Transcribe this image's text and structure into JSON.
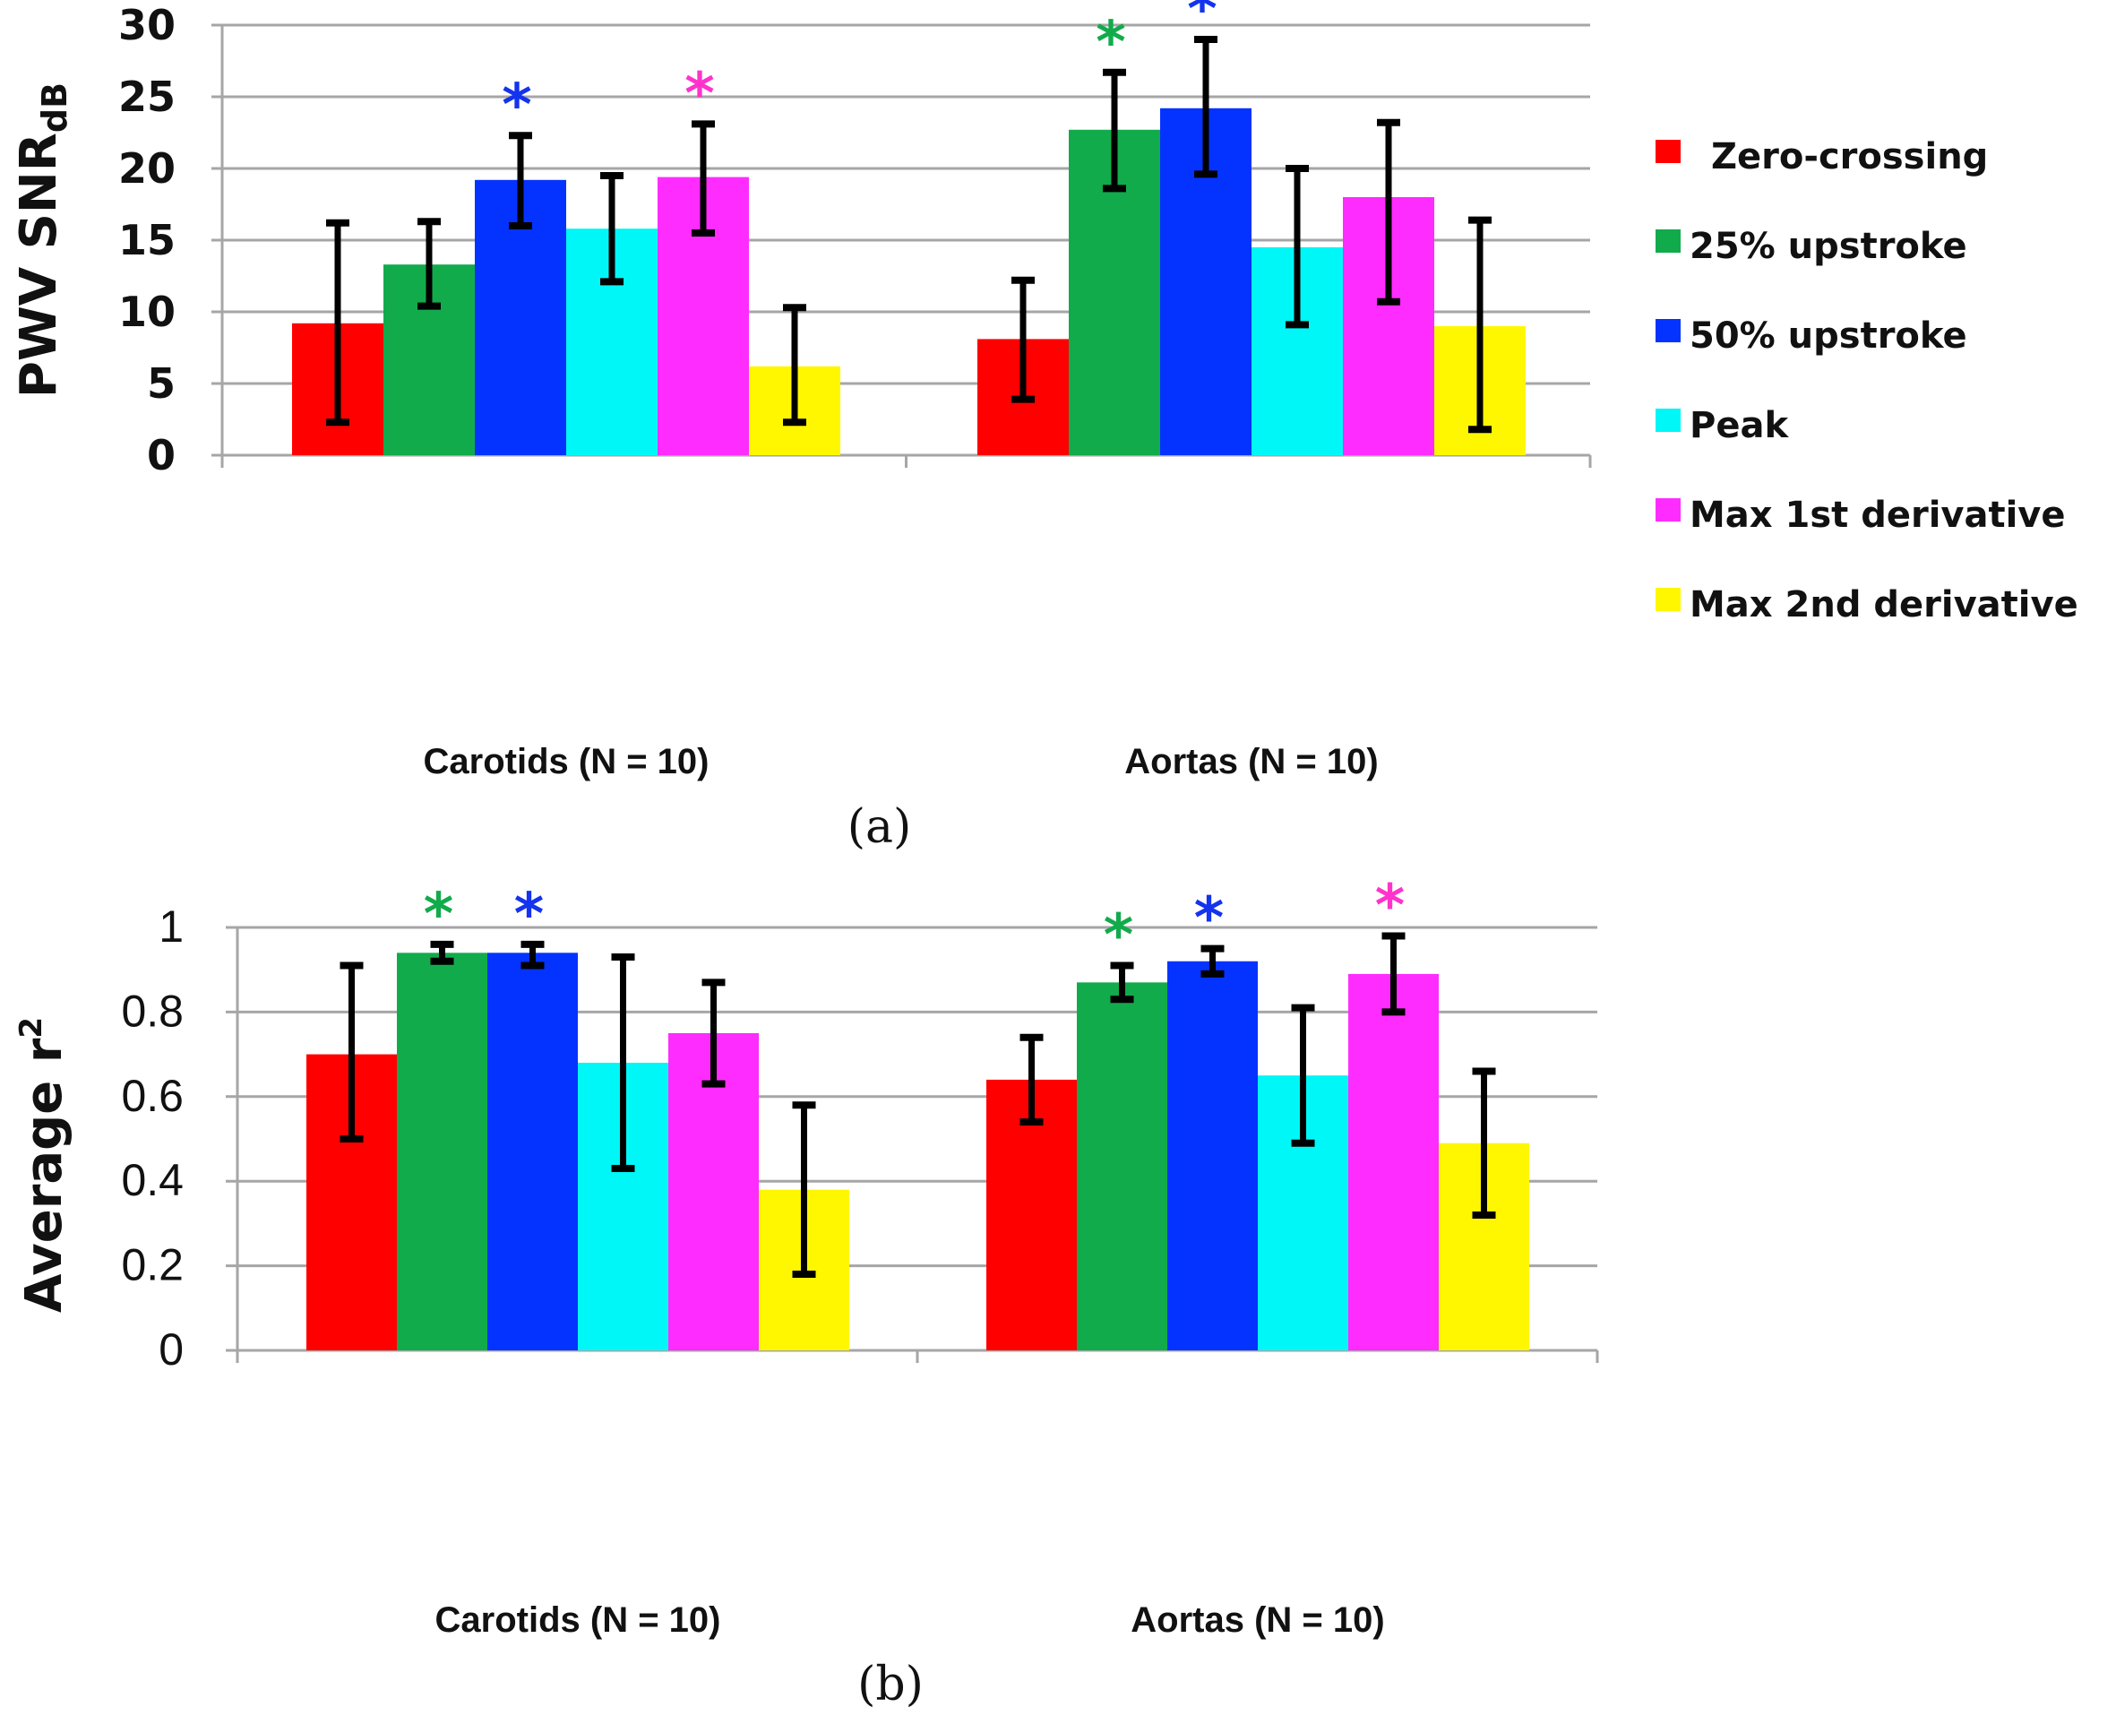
{
  "legend": [
    {
      "label": "Zero-crossing",
      "color": "#ff0000"
    },
    {
      "label": "25% upstroke",
      "color": "#12ab4c"
    },
    {
      "label": "50% upstroke",
      "color": "#0433ff"
    },
    {
      "label": "Peak",
      "color": "#00f7f7"
    },
    {
      "label": "Max 1st derivative",
      "color": "#ff2cff"
    },
    {
      "label": "Max 2nd derivative",
      "color": "#fff700"
    }
  ],
  "chart_data": [
    {
      "type": "bar",
      "panel": "(a)",
      "title": "",
      "xlabel": "",
      "ylabel": "PWV SNR",
      "ylabel_subscript": "dB",
      "ylim": [
        0,
        30
      ],
      "yticks": [
        0,
        5,
        10,
        15,
        20,
        25,
        30
      ],
      "grid": true,
      "legend_position": "right",
      "categories": [
        "Carotids (N = 10)",
        "Aortas (N = 10)"
      ],
      "series": [
        {
          "name": "Zero-crossing",
          "values": [
            9.2,
            8.1
          ],
          "err_high": [
            16.2,
            12.2
          ],
          "err_low": [
            2.3,
            3.9
          ],
          "significant": [
            false,
            false
          ]
        },
        {
          "name": "25% upstroke",
          "values": [
            13.3,
            22.7
          ],
          "err_high": [
            16.3,
            26.7
          ],
          "err_low": [
            10.4,
            18.6
          ],
          "significant": [
            false,
            true
          ]
        },
        {
          "name": "50% upstroke",
          "values": [
            19.2,
            24.2
          ],
          "err_high": [
            22.3,
            29.0
          ],
          "err_low": [
            16.0,
            19.6
          ],
          "significant": [
            true,
            true
          ]
        },
        {
          "name": "Peak",
          "values": [
            15.8,
            14.5
          ],
          "err_high": [
            19.5,
            20.0
          ],
          "err_low": [
            12.1,
            9.1
          ],
          "significant": [
            false,
            false
          ]
        },
        {
          "name": "Max 1st derivative",
          "values": [
            19.4,
            18.0
          ],
          "err_high": [
            23.1,
            23.2
          ],
          "err_low": [
            15.5,
            10.7
          ],
          "significant": [
            true,
            false
          ]
        },
        {
          "name": "Max 2nd derivative",
          "values": [
            6.2,
            9.0
          ],
          "err_high": [
            10.3,
            16.4
          ],
          "err_low": [
            2.3,
            1.8
          ],
          "significant": [
            false,
            false
          ]
        }
      ],
      "annotation": "*"
    },
    {
      "type": "bar",
      "panel": "(b)",
      "title": "",
      "xlabel": "",
      "ylabel": "Average r",
      "ylabel_superscript": "2",
      "ylim": [
        0,
        1
      ],
      "yticks": [
        0,
        0.2,
        0.4,
        0.6,
        0.8,
        1
      ],
      "ytick_labels": [
        "0",
        "0.2",
        "0.4",
        "0.6",
        "0.8",
        "1"
      ],
      "grid": true,
      "legend_position": "none",
      "categories": [
        "Carotids (N = 10)",
        "Aortas (N = 10)"
      ],
      "series": [
        {
          "name": "Zero-crossing",
          "values": [
            0.7,
            0.64
          ],
          "err_high": [
            0.91,
            0.74
          ],
          "err_low": [
            0.5,
            0.54
          ],
          "significant": [
            false,
            false
          ]
        },
        {
          "name": "25% upstroke",
          "values": [
            0.94,
            0.87
          ],
          "err_high": [
            0.96,
            0.91
          ],
          "err_low": [
            0.92,
            0.83
          ],
          "significant": [
            true,
            true
          ]
        },
        {
          "name": "50% upstroke",
          "values": [
            0.94,
            0.92
          ],
          "err_high": [
            0.96,
            0.95
          ],
          "err_low": [
            0.91,
            0.89
          ],
          "significant": [
            true,
            true
          ]
        },
        {
          "name": "Peak",
          "values": [
            0.68,
            0.65
          ],
          "err_high": [
            0.93,
            0.81
          ],
          "err_low": [
            0.43,
            0.49
          ],
          "significant": [
            false,
            false
          ]
        },
        {
          "name": "Max 1st derivative",
          "values": [
            0.75,
            0.89
          ],
          "err_high": [
            0.87,
            0.98
          ],
          "err_low": [
            0.63,
            0.8
          ],
          "significant": [
            false,
            true
          ]
        },
        {
          "name": "Max 2nd derivative",
          "values": [
            0.38,
            0.49
          ],
          "err_high": [
            0.58,
            0.66
          ],
          "err_low": [
            0.18,
            0.32
          ],
          "significant": [
            false,
            false
          ]
        }
      ],
      "annotation": "*"
    }
  ]
}
